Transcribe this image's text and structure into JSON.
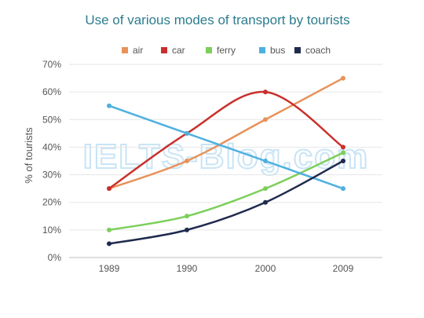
{
  "chart_data": {
    "type": "line",
    "title": "Use of various modes of transport by tourists",
    "xlabel": "",
    "ylabel": "% of tourists",
    "categories": [
      "1989",
      "1990",
      "2000",
      "2009"
    ],
    "ylim": [
      0,
      70
    ],
    "yticks": [
      "0%",
      "10%",
      "20%",
      "30%",
      "40%",
      "50%",
      "60%",
      "70%"
    ],
    "grid": true,
    "legend_position": "top",
    "watermark": "IELTS-Blog.com",
    "series": [
      {
        "name": "air",
        "color": "#e8925a",
        "values": [
          25,
          35,
          50,
          65
        ]
      },
      {
        "name": "car",
        "color": "#c9302c",
        "values": [
          25,
          45,
          60,
          40
        ]
      },
      {
        "name": "ferry",
        "color": "#7ccf5a",
        "values": [
          10,
          15,
          25,
          38
        ]
      },
      {
        "name": "bus",
        "color": "#4fb0e0",
        "values": [
          55,
          45,
          35,
          25
        ]
      },
      {
        "name": "coach",
        "color": "#1f2a4d",
        "values": [
          5,
          10,
          20,
          35
        ]
      }
    ]
  }
}
